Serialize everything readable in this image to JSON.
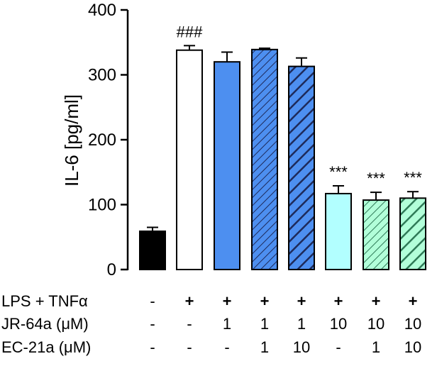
{
  "chart_data": {
    "type": "bar",
    "title": "",
    "xlabel": "",
    "ylabel": "IL-6 [pg/ml]",
    "ylim": [
      0,
      400
    ],
    "yticks": [
      "0",
      "100",
      "200",
      "300",
      "400"
    ],
    "grid": false,
    "legend": "none",
    "bars": [
      {
        "value": 59,
        "error": 6,
        "fill": "#000000",
        "hatch": "none",
        "annotation": ""
      },
      {
        "value": 338,
        "error": 7,
        "fill": "#ffffff",
        "hatch": "none",
        "annotation": "###"
      },
      {
        "value": 320,
        "error": 15,
        "fill": "#4d8ff0",
        "hatch": "none",
        "annotation": ""
      },
      {
        "value": 339,
        "error": 2,
        "fill": "#4d8ff0",
        "hatch": "thin",
        "annotation": ""
      },
      {
        "value": 313,
        "error": 13,
        "fill": "#4d8ff0",
        "hatch": "bold",
        "annotation": ""
      },
      {
        "value": 117,
        "error": 12,
        "fill": "#b2ffff",
        "hatch": "none",
        "annotation": "***"
      },
      {
        "value": 107,
        "error": 12,
        "fill": "#b2ffd9",
        "hatch": "thin",
        "annotation": "***"
      },
      {
        "value": 110,
        "error": 10,
        "fill": "#b2ffd9",
        "hatch": "bold",
        "annotation": "***"
      }
    ],
    "condition_rows": [
      {
        "label": "LPS + TNFα",
        "values": [
          "-",
          "+",
          "+",
          "+",
          "+",
          "+",
          "+",
          "+"
        ]
      },
      {
        "label": "JR-64a (μM)",
        "values": [
          "-",
          "-",
          "1",
          "1",
          "1",
          "10",
          "10",
          "10"
        ]
      },
      {
        "label": "EC-21a (μM)",
        "values": [
          "-",
          "-",
          "-",
          "1",
          "10",
          "-",
          "1",
          "10"
        ]
      }
    ]
  },
  "colors": {
    "axis": "#000000",
    "blue": "#4d8ff0",
    "cyan": "#b2ffff",
    "mint": "#b2ffd9",
    "hatch_blue": "#1e2a5a",
    "hatch_green": "#2f7a57"
  }
}
